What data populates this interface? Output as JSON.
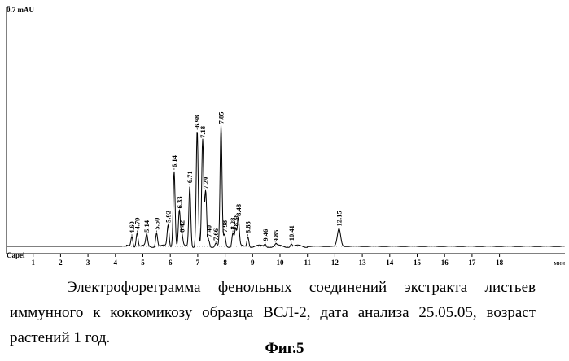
{
  "chart_data": {
    "type": "line",
    "ylabel": "0.7 mAU",
    "xlabel": "мин",
    "baseline_label": "Capel",
    "xlim": [
      0,
      19.3
    ],
    "ylim": [
      0,
      0.7
    ],
    "xticks": [
      "1",
      "2",
      "3",
      "4",
      "5",
      "6",
      "7",
      "8",
      "9",
      "10",
      "11",
      "12",
      "13",
      "14",
      "15",
      "16",
      "17",
      "18"
    ],
    "peaks": [
      {
        "t": 4.6,
        "label": "4.60",
        "h": 0.031
      },
      {
        "t": 4.79,
        "label": "4.79",
        "h": 0.042
      },
      {
        "t": 5.14,
        "label": "5.14",
        "h": 0.034
      },
      {
        "t": 5.5,
        "label": "5.50",
        "h": 0.042
      },
      {
        "t": 5.92,
        "label": "5.92",
        "h": 0.063
      },
      {
        "t": 6.14,
        "label": "6.14",
        "h": 0.226
      },
      {
        "t": 6.33,
        "label": "6.33",
        "h": 0.105
      },
      {
        "t": 6.42,
        "label": "6.42",
        "h": 0.034
      },
      {
        "t": 6.71,
        "label": "6.71",
        "h": 0.18
      },
      {
        "t": 6.98,
        "label": "6.98",
        "h": 0.345
      },
      {
        "t": 7.18,
        "label": "7.18",
        "h": 0.313
      },
      {
        "t": 7.29,
        "label": "7.29",
        "h": 0.162
      },
      {
        "t": 7.4,
        "label": "7.40",
        "h": 0.02
      },
      {
        "t": 7.66,
        "label": "7.66",
        "h": 0.01
      },
      {
        "t": 7.85,
        "label": "7.85",
        "h": 0.355
      },
      {
        "t": 7.98,
        "label": "7.98",
        "h": 0.034
      },
      {
        "t": 8.28,
        "label": "8.28",
        "h": 0.042
      },
      {
        "t": 8.38,
        "label": "8.38",
        "h": 0.052
      },
      {
        "t": 8.48,
        "label": "8.48",
        "h": 0.082
      },
      {
        "t": 8.83,
        "label": "8.83",
        "h": 0.031
      },
      {
        "t": 9.46,
        "label": "9.46",
        "h": 0.008
      },
      {
        "t": 9.85,
        "label": "9.85",
        "h": 0.006
      },
      {
        "t": 10.41,
        "label": "10.41",
        "h": 0.009
      },
      {
        "t": 12.15,
        "label": "12.15",
        "h": 0.052
      }
    ]
  },
  "caption": "Электрофореграмма фенольных соединений экстракта листьев иммунного к коккомикозу образца ВСЛ-2, дата анализа 25.05.05, возраст растений 1 год.",
  "figure_label": "Фиг.5"
}
